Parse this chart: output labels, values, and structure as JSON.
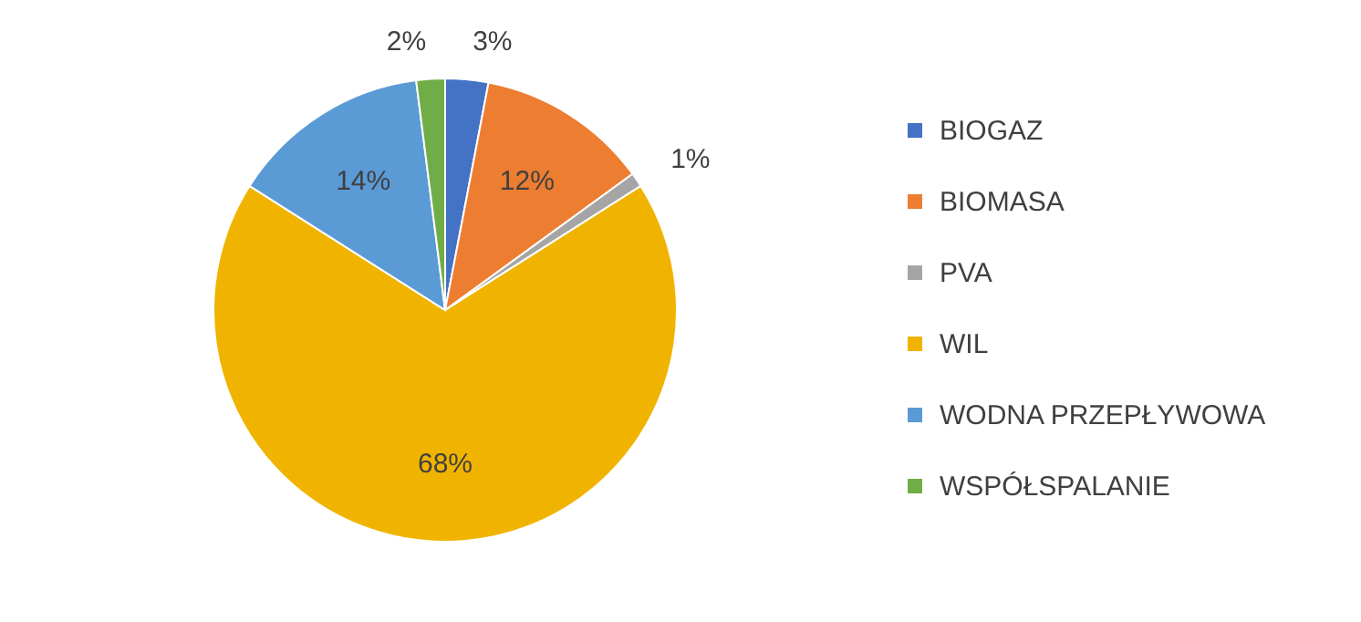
{
  "chart_data": {
    "type": "pie",
    "categories": [
      "BIOGAZ",
      "BIOMASA",
      "PVA",
      "WIL",
      "WODNA PRZEPŁYWOWA",
      "WSPÓŁSPALANIE"
    ],
    "values": [
      3,
      12,
      1,
      68,
      14,
      2
    ],
    "colors": [
      "#4472c4",
      "#ed7d31",
      "#a5a5a5",
      "#f0b400",
      "#5b9bd5",
      "#70ad47"
    ],
    "value_labels": [
      "3%",
      "12%",
      "1%",
      "68%",
      "14%",
      "2%"
    ],
    "legend": "right"
  }
}
